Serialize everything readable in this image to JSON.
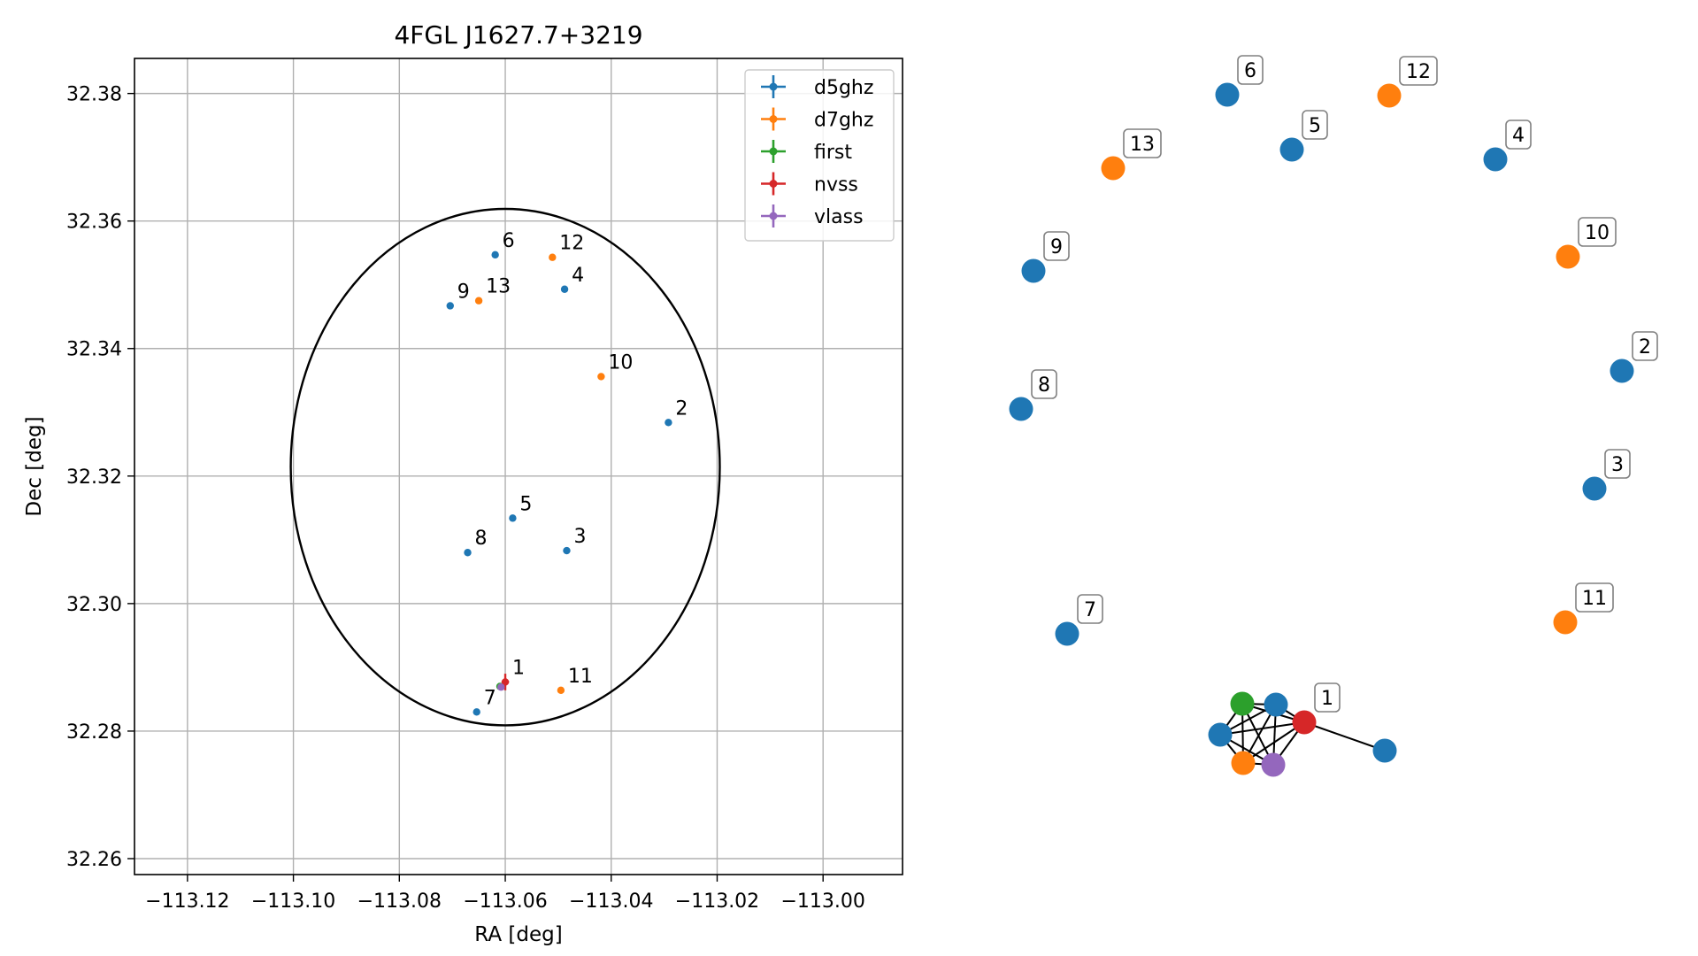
{
  "colors": {
    "d5ghz": "#1f77b4",
    "d7ghz": "#ff7f0e",
    "first": "#2ca02c",
    "nvss": "#d62728",
    "vlass": "#9467bd",
    "grid": "#b0b0b0",
    "circle": "#000000"
  },
  "chart_data": [
    {
      "type": "scatter",
      "title": "4FGL J1627.7+3219",
      "xlabel": "RA [deg]",
      "ylabel": "Dec [deg]",
      "xlim": [
        -113.13,
        -112.985
      ],
      "ylim": [
        32.2575,
        32.3855
      ],
      "xticks": [
        -113.12,
        -113.1,
        -113.08,
        -113.06,
        -113.04,
        -113.02,
        -113.0
      ],
      "xtick_labels": [
        "−113.12",
        "−113.10",
        "−113.08",
        "−113.06",
        "−113.04",
        "−113.02",
        "−113.00"
      ],
      "yticks": [
        32.26,
        32.28,
        32.3,
        32.32,
        32.34,
        32.36,
        32.38
      ],
      "ytick_labels": [
        "32.26",
        "32.28",
        "32.30",
        "32.32",
        "32.34",
        "32.36",
        "32.38"
      ],
      "grid": true,
      "legend_position": "top-right",
      "circle": {
        "ra": -113.06,
        "dec": 32.3214,
        "radius_deg": 0.0405
      },
      "series": [
        {
          "name": "d5ghz",
          "points": [
            {
              "label": "2",
              "ra": -113.0292,
              "dec": 32.3284
            },
            {
              "label": "3",
              "ra": -113.0484,
              "dec": 32.3083
            },
            {
              "label": "4",
              "ra": -113.0488,
              "dec": 32.3493
            },
            {
              "label": "5",
              "ra": -113.0586,
              "dec": 32.3134
            },
            {
              "label": "6",
              "ra": -113.0619,
              "dec": 32.3547
            },
            {
              "label": "7",
              "ra": -113.0654,
              "dec": 32.283
            },
            {
              "label": "8",
              "ra": -113.0671,
              "dec": 32.308
            },
            {
              "label": "9",
              "ra": -113.0704,
              "dec": 32.3467
            }
          ]
        },
        {
          "name": "d7ghz",
          "points": [
            {
              "label": "10",
              "ra": -113.0419,
              "dec": 32.3356
            },
            {
              "label": "11",
              "ra": -113.0495,
              "dec": 32.2864
            },
            {
              "label": "12",
              "ra": -113.0511,
              "dec": 32.3543
            },
            {
              "label": "13",
              "ra": -113.065,
              "dec": 32.3475
            }
          ]
        },
        {
          "name": "first",
          "points": [
            {
              "label": "",
              "ra": -113.061,
              "dec": 32.287
            }
          ]
        },
        {
          "name": "nvss",
          "points": [
            {
              "label": "1",
              "ra": -113.06,
              "dec": 32.2877,
              "err_ra": 0.0007,
              "err_dec": 0.0013
            }
          ]
        },
        {
          "name": "vlass",
          "points": [
            {
              "label": "",
              "ra": -113.0608,
              "dec": 32.2869
            }
          ]
        }
      ]
    },
    {
      "type": "network",
      "nodes": [
        {
          "label": "6",
          "series": "d5ghz"
        },
        {
          "label": "12",
          "series": "d7ghz"
        },
        {
          "label": "5",
          "series": "d5ghz"
        },
        {
          "label": "13",
          "series": "d7ghz"
        },
        {
          "label": "4",
          "series": "d5ghz"
        },
        {
          "label": "9",
          "series": "d5ghz"
        },
        {
          "label": "10",
          "series": "d7ghz"
        },
        {
          "label": "2",
          "series": "d5ghz"
        },
        {
          "label": "8",
          "series": "d5ghz"
        },
        {
          "label": "3",
          "series": "d5ghz"
        },
        {
          "label": "7",
          "series": "d5ghz"
        },
        {
          "label": "11",
          "series": "d7ghz"
        },
        {
          "label": "1",
          "series": "nvss"
        },
        {
          "label": "",
          "series": "first"
        },
        {
          "label": "",
          "series": "d5ghz"
        },
        {
          "label": "",
          "series": "d5ghz"
        },
        {
          "label": "",
          "series": "d7ghz"
        },
        {
          "label": "",
          "series": "vlass"
        },
        {
          "label": "",
          "series": "d5ghz"
        }
      ]
    }
  ]
}
